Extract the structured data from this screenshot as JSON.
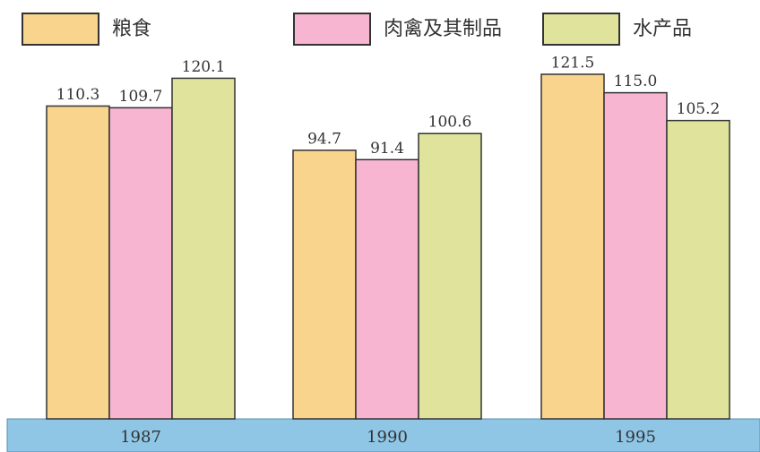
{
  "chart_data": {
    "type": "bar",
    "categories": [
      "1987",
      "1990",
      "1995"
    ],
    "series": [
      {
        "name": "粮食",
        "color": "#f8d48c",
        "values": [
          110.3,
          94.7,
          121.5
        ]
      },
      {
        "name": "肉禽及其制品",
        "color": "#f7b5d2",
        "values": [
          109.7,
          91.4,
          115
        ],
        "value_labels": [
          "109.7",
          "91.4",
          "115.0"
        ]
      },
      {
        "name": "水产品",
        "color": "#e0e39c",
        "values": [
          120.1,
          100.6,
          105.2
        ]
      }
    ]
  }
}
